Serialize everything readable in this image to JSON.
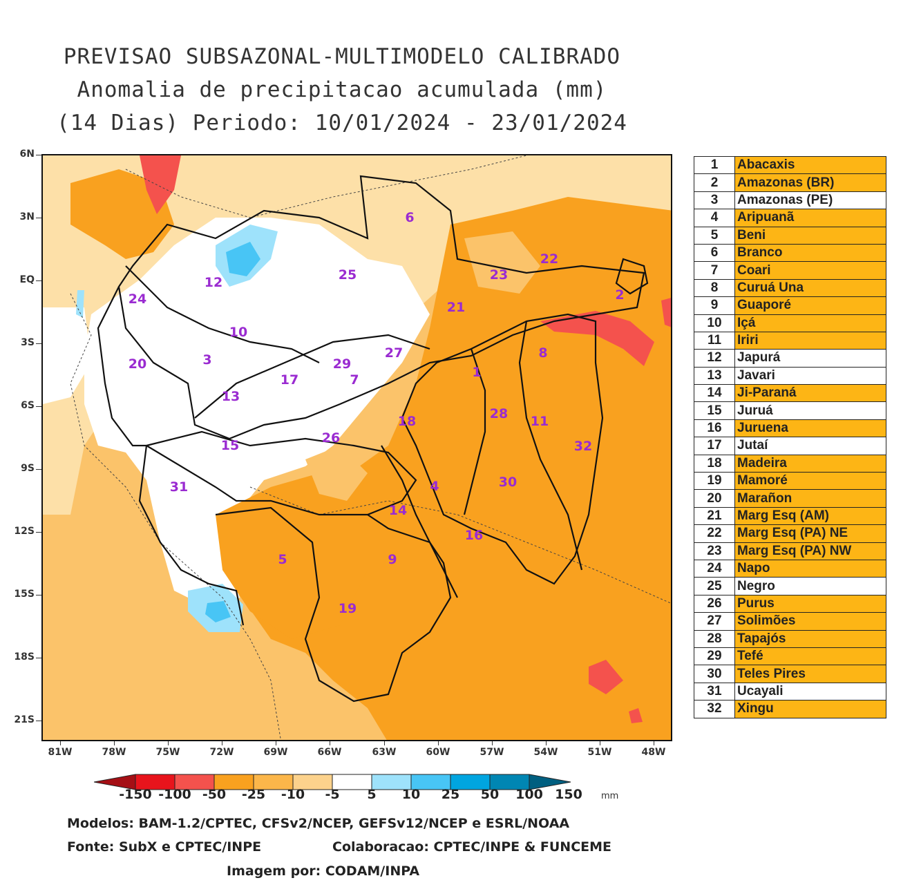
{
  "title": {
    "line1": "PREVISAO SUBSAZONAL-MULTIMODELO CALIBRADO",
    "line2": "Anomalia de precipitacao acumulada (mm)",
    "line3": "(14 Dias) Periodo: 10/01/2024 - 23/01/2024"
  },
  "axes": {
    "lat": [
      "6N",
      "3N",
      "EQ",
      "3S",
      "6S",
      "9S",
      "12S",
      "15S",
      "18S",
      "21S"
    ],
    "lon": [
      "81W",
      "78W",
      "75W",
      "72W",
      "69W",
      "66W",
      "63W",
      "60W",
      "57W",
      "54W",
      "51W",
      "48W"
    ]
  },
  "colorbar": {
    "labels": [
      "-150",
      "-100",
      "-50",
      "-25",
      "-10",
      "-5",
      "5",
      "10",
      "25",
      "50",
      "100",
      "150"
    ],
    "unit": "mm",
    "colors": [
      "#a50f15",
      "#e8141c",
      "#f4524d",
      "#f9a11f",
      "#fbb64a",
      "#fcd28c",
      "#ffffff",
      "#9ee2fb",
      "#48c5f5",
      "#00a5e0",
      "#0086b3",
      "#005f80"
    ]
  },
  "colors": {
    "orange": "#f9a11f",
    "light_orange": "#fbc36a",
    "pale_orange": "#fde0a8",
    "red": "#f4524d",
    "blue": "#48c5f5",
    "light_blue": "#9ee2fb",
    "legend_highlight": "#fdb515"
  },
  "basin_labels": [
    "1",
    "2",
    "3",
    "4",
    "5",
    "6",
    "7",
    "8",
    "9",
    "10",
    "11",
    "12",
    "13",
    "14",
    "15",
    "16",
    "17",
    "18",
    "19",
    "20",
    "21",
    "22",
    "23",
    "24",
    "25",
    "26",
    "27",
    "28",
    "29",
    "30",
    "31",
    "32"
  ],
  "legend": [
    {
      "num": "1",
      "name": "Abacaxis",
      "highlight": true
    },
    {
      "num": "2",
      "name": "Amazonas (BR)",
      "highlight": true
    },
    {
      "num": "3",
      "name": "Amazonas (PE)",
      "highlight": false
    },
    {
      "num": "4",
      "name": "Aripuanã",
      "highlight": true
    },
    {
      "num": "5",
      "name": "Beni",
      "highlight": true
    },
    {
      "num": "6",
      "name": "Branco",
      "highlight": true
    },
    {
      "num": "7",
      "name": "Coari",
      "highlight": true
    },
    {
      "num": "8",
      "name": "Curuá Una",
      "highlight": true
    },
    {
      "num": "9",
      "name": "Guaporé",
      "highlight": true
    },
    {
      "num": "10",
      "name": "Içá",
      "highlight": true
    },
    {
      "num": "11",
      "name": "Iriri",
      "highlight": true
    },
    {
      "num": "12",
      "name": "Japurá",
      "highlight": false
    },
    {
      "num": "13",
      "name": "Javari",
      "highlight": false
    },
    {
      "num": "14",
      "name": "Ji-Paraná",
      "highlight": true
    },
    {
      "num": "15",
      "name": "Juruá",
      "highlight": false
    },
    {
      "num": "16",
      "name": "Juruena",
      "highlight": true
    },
    {
      "num": "17",
      "name": "Jutaí",
      "highlight": false
    },
    {
      "num": "18",
      "name": "Madeira",
      "highlight": true
    },
    {
      "num": "19",
      "name": "Mamoré",
      "highlight": true
    },
    {
      "num": "20",
      "name": "Marañon",
      "highlight": true
    },
    {
      "num": "21",
      "name": "Marg Esq (AM)",
      "highlight": true
    },
    {
      "num": "22",
      "name": "Marg Esq (PA) NE",
      "highlight": true
    },
    {
      "num": "23",
      "name": "Marg Esq (PA) NW",
      "highlight": true
    },
    {
      "num": "24",
      "name": "Napo",
      "highlight": true
    },
    {
      "num": "25",
      "name": "Negro",
      "highlight": false
    },
    {
      "num": "26",
      "name": "Purus",
      "highlight": true
    },
    {
      "num": "27",
      "name": "Solimões",
      "highlight": true
    },
    {
      "num": "28",
      "name": "Tapajós",
      "highlight": true
    },
    {
      "num": "29",
      "name": "Tefé",
      "highlight": true
    },
    {
      "num": "30",
      "name": "Teles Pires",
      "highlight": true
    },
    {
      "num": "31",
      "name": "Ucayali",
      "highlight": false
    },
    {
      "num": "32",
      "name": "Xingu",
      "highlight": true
    }
  ],
  "footer": {
    "models": "Modelos: BAM-1.2/CPTEC, CFSv2/NCEP, GEFSv12/NCEP e ESRL/NOAA",
    "source": "Fonte: SubX e CPTEC/INPE",
    "collab": "Colaboracao: CPTEC/INPE & FUNCEME",
    "image_by": "Imagem por: CODAM/INPA"
  }
}
